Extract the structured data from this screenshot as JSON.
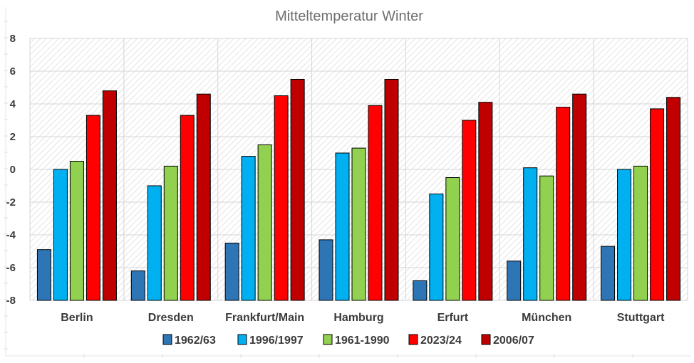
{
  "chart_data": {
    "type": "bar",
    "title": "Mitteltemperatur Winter",
    "xlabel": "",
    "ylabel": "",
    "categories": [
      "Berlin",
      "Dresden",
      "Frankfurt/Main",
      "Hamburg",
      "Erfurt",
      "München",
      "Stuttgart"
    ],
    "ylim": [
      -8,
      8
    ],
    "yticks": [
      "8",
      "6",
      "4",
      "2",
      "0",
      "-2",
      "-4",
      "-6",
      "-8"
    ],
    "grid": true,
    "legend_position": "bottom",
    "series": [
      {
        "name": "1962/63",
        "color": "#2E75B6",
        "values": [
          -4.9,
          -6.2,
          -4.5,
          -4.3,
          -6.8,
          -5.6,
          -4.7
        ]
      },
      {
        "name": "1996/1997",
        "color": "#00B0F0",
        "values": [
          0.0,
          -1.0,
          0.8,
          1.0,
          -1.5,
          0.1,
          0.0
        ]
      },
      {
        "name": "1961-1990",
        "color": "#92D050",
        "values": [
          0.5,
          0.2,
          1.5,
          1.3,
          -0.5,
          -0.4,
          0.2
        ]
      },
      {
        "name": "2023/24",
        "color": "#FF0000",
        "values": [
          3.3,
          3.3,
          4.5,
          3.9,
          3.0,
          3.8,
          3.7
        ]
      },
      {
        "name": "2006/07",
        "color": "#C00000",
        "values": [
          4.8,
          4.6,
          5.5,
          5.5,
          4.1,
          4.6,
          4.4
        ]
      }
    ]
  }
}
